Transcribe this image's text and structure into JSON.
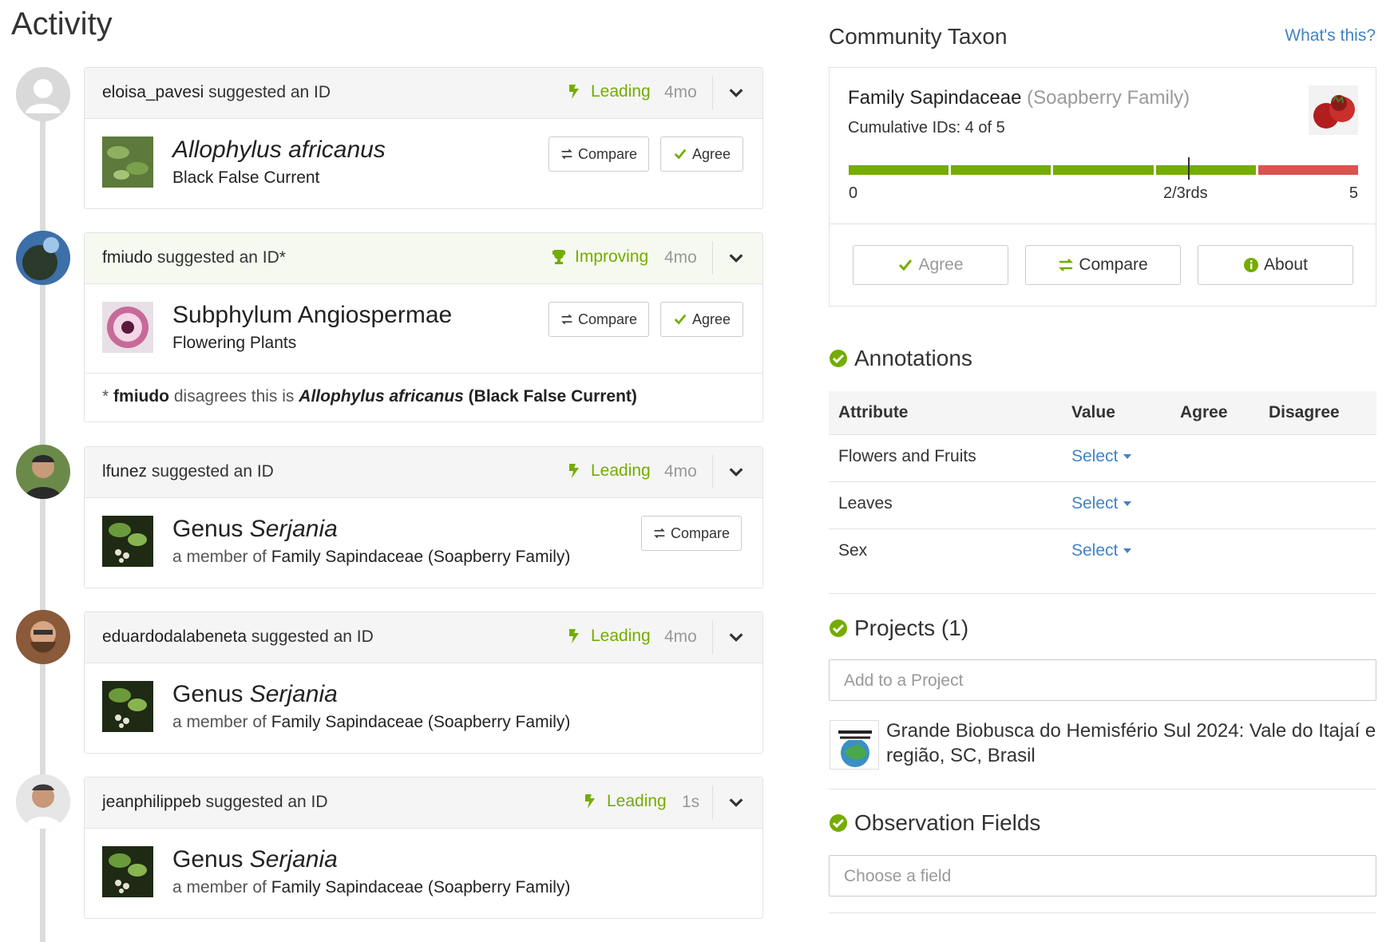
{
  "activity": {
    "heading": "Activity",
    "items": [
      {
        "user": "eloisa_pavesi",
        "action": "suggested an ID",
        "status": "Leading",
        "age": "4mo",
        "taxon_prefix": "",
        "taxon_name": "Allophylus africanus",
        "common": "Black False Current",
        "member_prefix": "",
        "compare": "Compare",
        "agree": "Agree"
      },
      {
        "user": "fmiudo",
        "action": "suggested an ID*",
        "status": "Improving",
        "age": "4mo",
        "taxon_prefix": "Subphylum Angiospermae",
        "taxon_name": "",
        "common": "Flowering Plants",
        "member_prefix": "",
        "compare": "Compare",
        "agree": "Agree",
        "footer": {
          "star": "*",
          "user": "fmiudo",
          "text": "disagrees this is",
          "taxon": "Allophylus africanus",
          "common": "(Black False Current)"
        }
      },
      {
        "user": "lfunez",
        "action": "suggested an ID",
        "status": "Leading",
        "age": "4mo",
        "taxon_prefix": "Genus",
        "taxon_name": "Serjania",
        "member_prefix": "a member of",
        "common": "Family Sapindaceae (Soapberry Family)",
        "compare": "Compare"
      },
      {
        "user": "eduardodalabeneta",
        "action": "suggested an ID",
        "status": "Leading",
        "age": "4mo",
        "taxon_prefix": "Genus",
        "taxon_name": "Serjania",
        "member_prefix": "a member of",
        "common": "Family Sapindaceae (Soapberry Family)"
      },
      {
        "user": "jeanphilippeb",
        "action": "suggested an ID",
        "status": "Leading",
        "age": "1s",
        "taxon_prefix": "Genus",
        "taxon_name": "Serjania",
        "member_prefix": "a member of",
        "common": "Family Sapindaceae (Soapberry Family)"
      }
    ]
  },
  "community_taxon": {
    "title": "Community Taxon",
    "whats_this": "What's this?",
    "taxon": "Family Sapindaceae",
    "common": "(Soapberry Family)",
    "cumulative": "Cumulative IDs: 4 of 5",
    "agreement_fraction": 0.8,
    "label_min": "0",
    "label_threshold": "2/3rds",
    "label_max": "5",
    "buttons": {
      "agree": "Agree",
      "compare": "Compare",
      "about": "About"
    }
  },
  "annotations": {
    "title": "Annotations",
    "headers": {
      "attribute": "Attribute",
      "value": "Value",
      "agree": "Agree",
      "disagree": "Disagree"
    },
    "rows": [
      {
        "attribute": "Flowers and Fruits",
        "value": "Select"
      },
      {
        "attribute": "Leaves",
        "value": "Select"
      },
      {
        "attribute": "Sex",
        "value": "Select"
      }
    ]
  },
  "projects": {
    "title": "Projects (1)",
    "placeholder": "Add to a Project",
    "items": [
      {
        "name": "Grande Biobusca do Hemisfério Sul 2024: Vale do Itajaí e região, SC, Brasil"
      }
    ]
  },
  "observation_fields": {
    "title": "Observation Fields",
    "placeholder": "Choose a field"
  },
  "colors": {
    "accent_green": "#74ac00",
    "link_blue": "#4183c4",
    "bar_red": "#d9534f"
  }
}
